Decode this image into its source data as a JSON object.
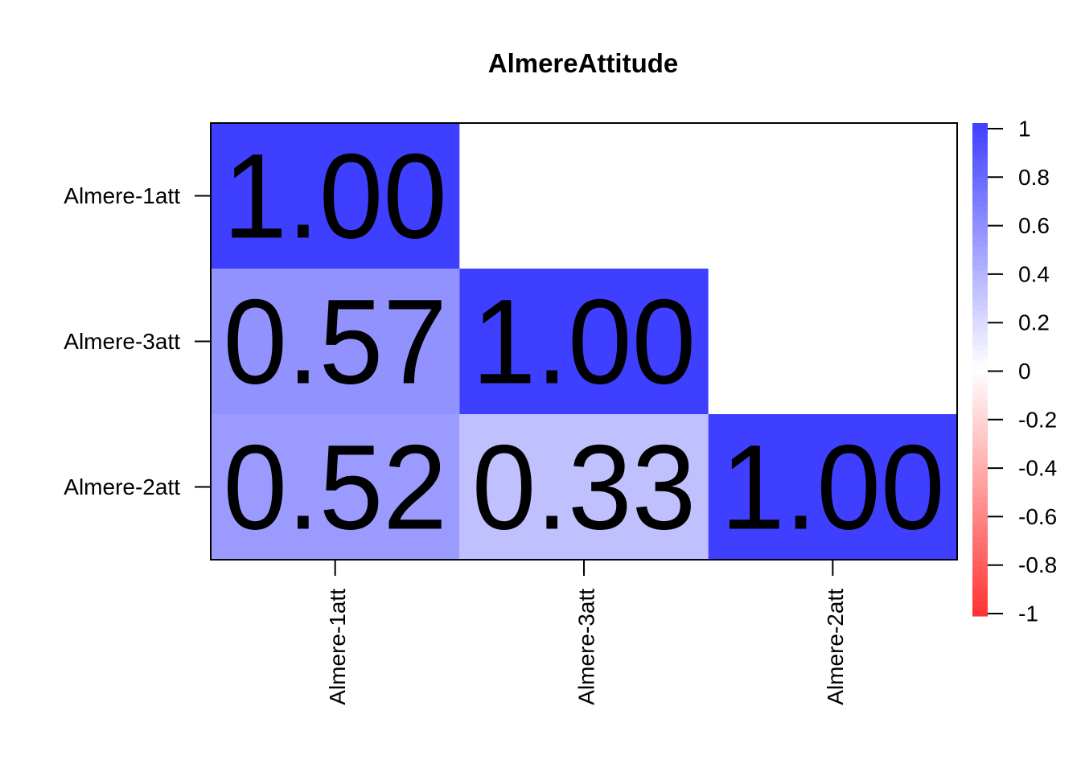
{
  "chart_data": {
    "type": "heatmap",
    "title": "AlmereAttitude",
    "x_labels": [
      "Almere-1att",
      "Almere-3att",
      "Almere-2att"
    ],
    "y_labels": [
      "Almere-1att",
      "Almere-3att",
      "Almere-2att"
    ],
    "cells": [
      {
        "row": 0,
        "col": 0,
        "value": 1.0,
        "label": "1.00"
      },
      {
        "row": 1,
        "col": 0,
        "value": 0.57,
        "label": "0.57"
      },
      {
        "row": 1,
        "col": 1,
        "value": 1.0,
        "label": "1.00"
      },
      {
        "row": 2,
        "col": 0,
        "value": 0.52,
        "label": "0.52"
      },
      {
        "row": 2,
        "col": 1,
        "value": 0.33,
        "label": "0.33"
      },
      {
        "row": 2,
        "col": 2,
        "value": 1.0,
        "label": "1.00"
      }
    ],
    "color_scale": {
      "range": [
        -1,
        1
      ],
      "low_color": "#ff3333",
      "mid_color": "#ffffff",
      "high_color": "#3f3fff",
      "tick_values": [
        1,
        0.8,
        0.6,
        0.4,
        0.2,
        0,
        -0.2,
        -0.4,
        -0.6,
        -0.8,
        -1
      ],
      "tick_labels": [
        "1",
        "0.8",
        "0.6",
        "0.4",
        "0.2",
        "0",
        "-0.2",
        "-0.4",
        "-0.6",
        "-0.8",
        "-1"
      ]
    },
    "legend_placement": "right",
    "grid": false
  }
}
